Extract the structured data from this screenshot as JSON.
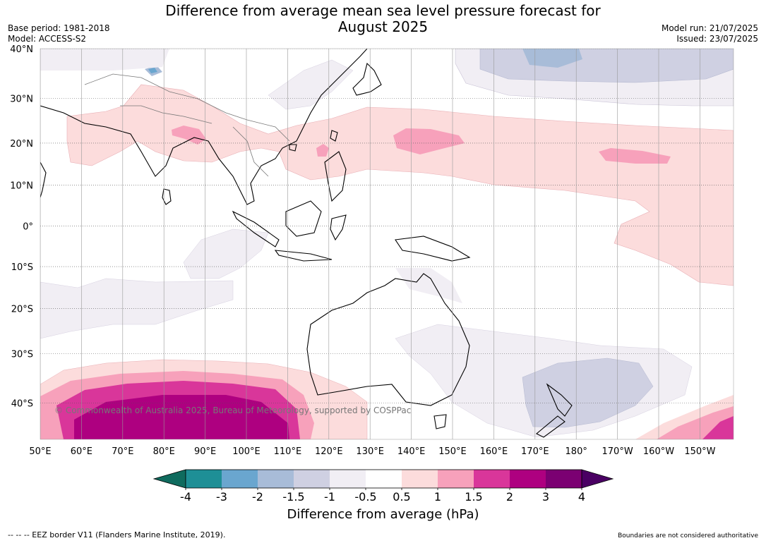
{
  "title": "Difference from average mean sea level pressure forecast for August 2025",
  "base_period": "Base period: 1981-2018",
  "model": "Model: ACCESS-S2",
  "model_run": "Model run: 21/07/2025",
  "issued": "Issued: 23/07/2025",
  "copyright": "© Commonwealth of Australia 2025, Bureau of Meteorology, supported by COSPPac",
  "eez_note": "-- -- -- EEZ border V11 (Flanders Marine Institute, 2019).",
  "boundaries_note": "Boundaries are not considered authoritative",
  "map": {
    "lat_labels": [
      "40°N",
      "30°N",
      "20°N",
      "10°N",
      "0°",
      "10°S",
      "20°S",
      "30°S",
      "40°S"
    ],
    "lon_labels": [
      "50°E",
      "60°E",
      "70°E",
      "80°E",
      "90°E",
      "100°E",
      "110°E",
      "120°E",
      "130°E",
      "140°E",
      "150°E",
      "160°E",
      "170°E",
      "180°",
      "170°W",
      "160°W",
      "150°W"
    ],
    "lat_values": [
      40,
      30,
      20,
      10,
      0,
      -10,
      -20,
      -30,
      -40
    ],
    "lon_values": [
      50,
      60,
      70,
      80,
      90,
      100,
      110,
      120,
      130,
      140,
      150,
      160,
      170,
      180,
      190,
      200,
      210
    ]
  },
  "colorbar": {
    "label": "Difference from average (hPa)",
    "ticks": [
      "-4",
      "-3",
      "-2",
      "-1.5",
      "-1",
      "-0.5",
      "0.5",
      "1",
      "1.5",
      "2",
      "3",
      "4"
    ],
    "colors": [
      "#0f6b5e",
      "#1e8f96",
      "#6aa6cf",
      "#a8bcd8",
      "#cfd0e2",
      "#f1eef4",
      "#ffffff",
      "#fcdcdc",
      "#f7a1bb",
      "#d9369a",
      "#ae0080",
      "#7b0072",
      "#4a0063"
    ]
  }
}
